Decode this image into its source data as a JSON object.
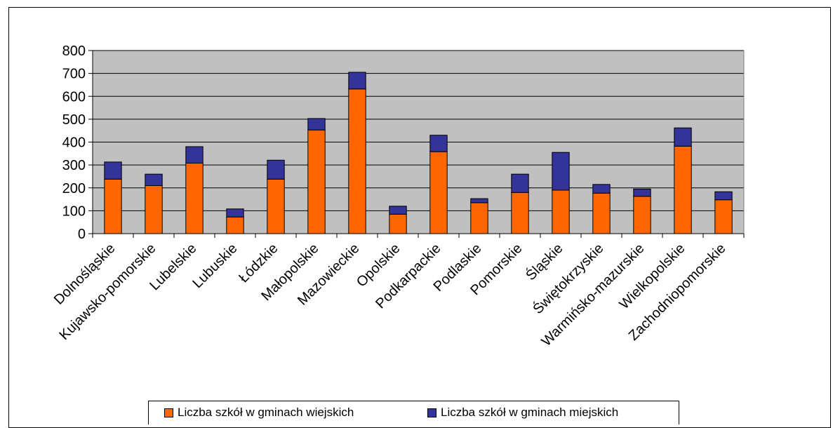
{
  "chart_data": {
    "type": "bar",
    "stacked": true,
    "categories": [
      "Dolnośląskie",
      "Kujawsko-pomorskie",
      "Lubelskie",
      "Lubuskie",
      "Łódzkie",
      "Małopolskie",
      "Mazowieckie",
      "Opolskie",
      "Podkarpackie",
      "Podlaskie",
      "Pomorskie",
      "Śląskie",
      "Świętokrzyskie",
      "Warmińsko-mazurskie",
      "Wielkopolskie",
      "Zachodniopomorskie"
    ],
    "series": [
      {
        "name": "Liczba szkół w  gminach wiejskich",
        "color": "#FF6600",
        "values": [
          238,
          210,
          308,
          73,
          238,
          453,
          632,
          85,
          358,
          135,
          180,
          190,
          177,
          163,
          382,
          148
        ]
      },
      {
        "name": "Liczba szkół w  gminach miejskich",
        "color": "#333399",
        "values": [
          75,
          50,
          72,
          35,
          83,
          50,
          73,
          35,
          72,
          18,
          80,
          165,
          38,
          32,
          80,
          35
        ]
      }
    ],
    "yticks": [
      "0",
      "100",
      "200",
      "300",
      "400",
      "500",
      "600",
      "700",
      "800"
    ],
    "ylim": [
      0,
      800
    ],
    "grid": true,
    "legend_position": "bottom",
    "plot_background": "#C0C0C0"
  }
}
